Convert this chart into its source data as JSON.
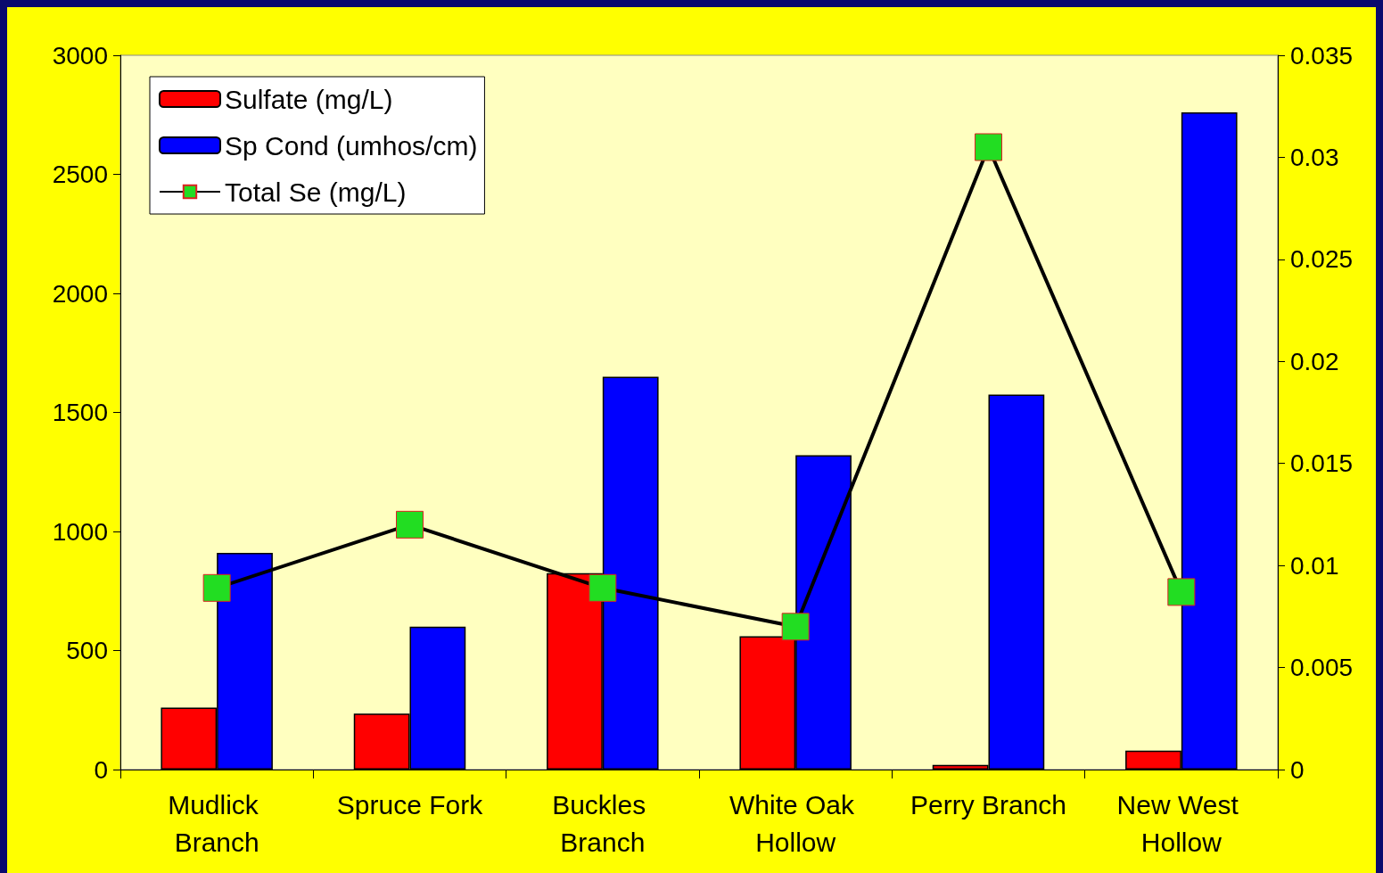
{
  "chart_data": {
    "type": "bar",
    "categories": [
      "Mudlick Branch",
      "Spruce Fork",
      "Buckles Branch",
      "White Oak Hollow",
      "Perry Branch",
      "New West Hollow"
    ],
    "series": [
      {
        "name": "Sulfate (mg/L)",
        "color": "#ff0000",
        "values": [
          260,
          235,
          825,
          560,
          20,
          80
        ]
      },
      {
        "name": "Sp Cond (umhos/cm)",
        "color": "#0000ff",
        "values": [
          910,
          600,
          1650,
          1320,
          1575,
          2760
        ]
      },
      {
        "name": "Total Se (mg/L)",
        "type": "line",
        "axis": "y2",
        "color": "#000000",
        "marker": "square",
        "values": [
          0.0089,
          0.012,
          0.0089,
          0.007,
          0.0305,
          0.0087
        ]
      }
    ],
    "ylim": [
      0,
      3000
    ],
    "yticks": [
      0,
      500,
      1000,
      1500,
      2000,
      2500,
      3000
    ],
    "y2lim": [
      0,
      0.035
    ],
    "y2ticks": [
      0,
      0.005,
      0.01,
      0.015,
      0.02,
      0.025,
      0.03,
      0.035
    ],
    "grid": false,
    "legend": "top left"
  }
}
